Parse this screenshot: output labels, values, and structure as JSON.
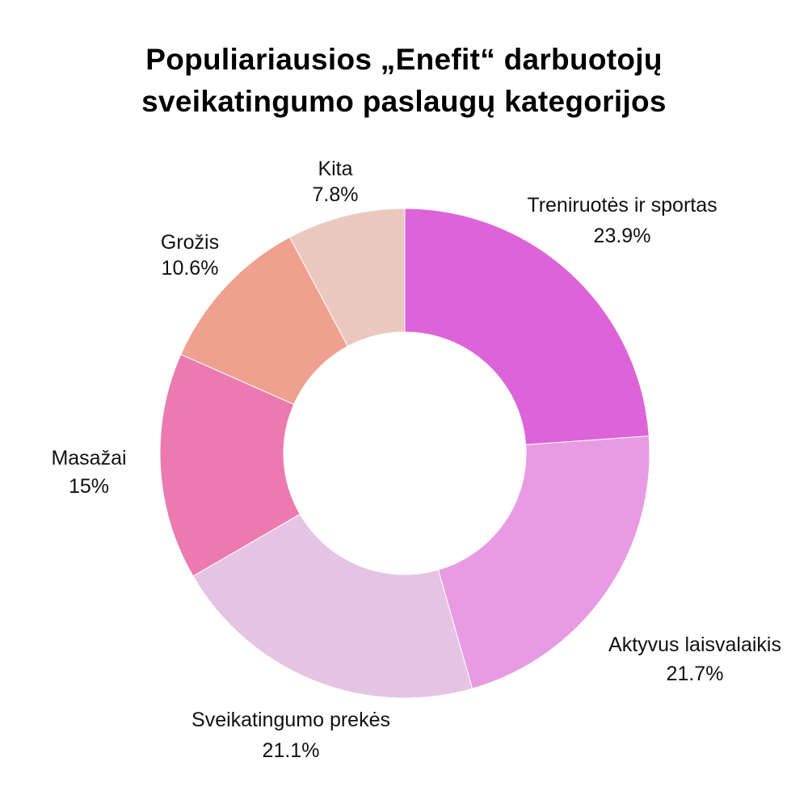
{
  "chart_data": {
    "type": "pie",
    "variant": "donut",
    "title_lines": [
      "Populiariausios „Enefit“ darbuotojų",
      "sveikatingumo paslaugų kategorijos"
    ],
    "categories": [
      "Treniruotės ir sportas",
      "Aktyvus laisvalaikis",
      "Sveikatingumo prekės",
      "Masažai",
      "Grožis",
      "Kita"
    ],
    "values": [
      23.9,
      21.7,
      21.1,
      15,
      10.6,
      7.8
    ],
    "value_labels": [
      "23.9%",
      "21.7%",
      "21.1%",
      "15%",
      "10.6%",
      "7.8%"
    ],
    "colors": [
      "#dd63d9",
      "#e89be3",
      "#e5c4e3",
      "#ec7ab0",
      "#f0a08e",
      "#ebc8bf"
    ],
    "start": "top",
    "direction": "clockwise",
    "legend": "none"
  }
}
